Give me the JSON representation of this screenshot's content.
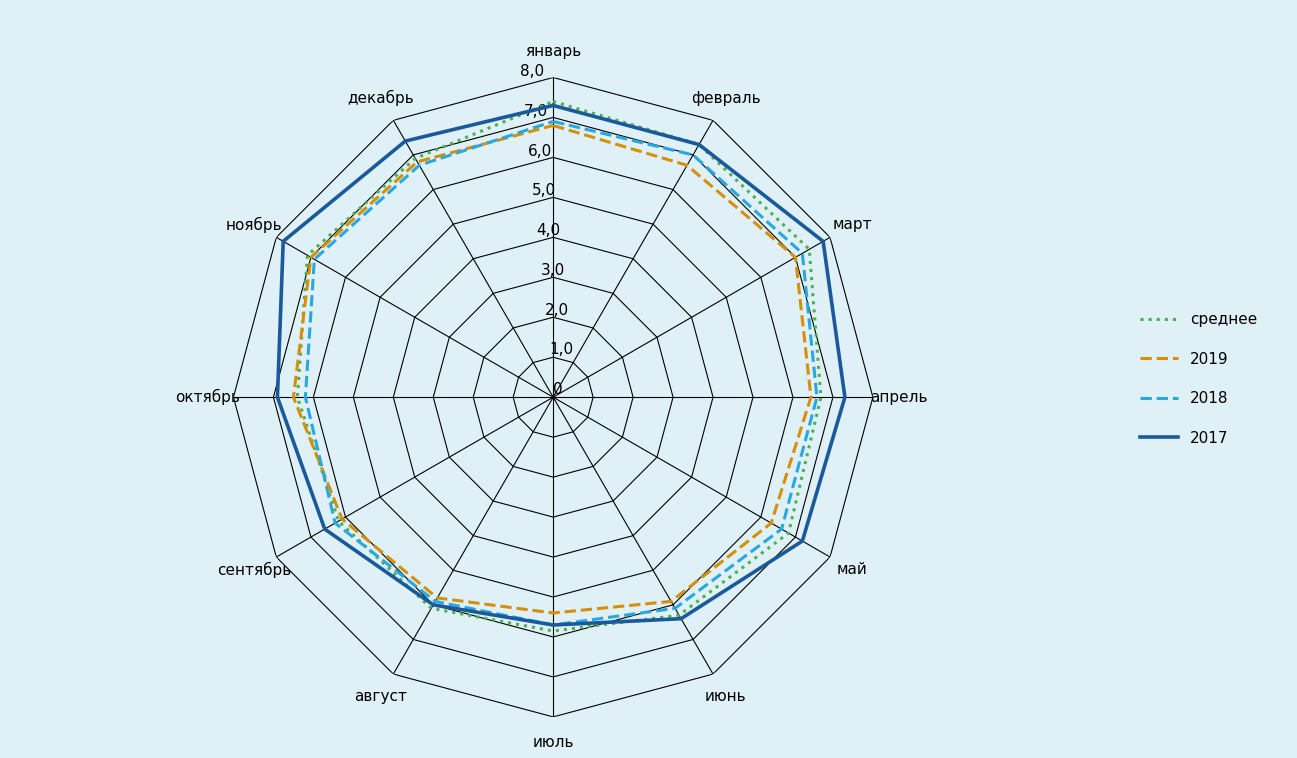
{
  "chart_data": {
    "type": "radar",
    "categories": [
      "январь",
      "февраль",
      "март",
      "апрель",
      "май",
      "июнь",
      "июль",
      "август",
      "сентябрь",
      "октябрь",
      "ноябрь",
      "декабрь"
    ],
    "series": [
      {
        "name": "среднее",
        "color": "#4caf50",
        "line_style": "dotted",
        "values": [
          7.4,
          7.3,
          7.4,
          6.7,
          6.8,
          6.3,
          5.85,
          6.1,
          6.2,
          6.4,
          7.1,
          6.9
        ]
      },
      {
        "name": "2019",
        "color": "#d4900a",
        "line_style": "dashed",
        "values": [
          6.8,
          6.7,
          7.0,
          6.45,
          6.3,
          5.9,
          5.4,
          5.8,
          6.1,
          6.5,
          7.0,
          6.8
        ]
      },
      {
        "name": "2018",
        "color": "#29a8e0",
        "line_style": "dashed",
        "values": [
          6.9,
          7.0,
          7.2,
          6.6,
          6.6,
          6.1,
          5.7,
          5.9,
          6.3,
          6.2,
          6.9,
          6.7
        ]
      },
      {
        "name": "2017",
        "color": "#1a5a9a",
        "line_style": "solid",
        "values": [
          7.3,
          7.3,
          7.8,
          7.3,
          7.2,
          6.4,
          5.7,
          6.0,
          6.6,
          6.9,
          7.8,
          7.4
        ]
      }
    ],
    "ylim": [
      0,
      8
    ],
    "yticks": [
      0,
      {
        "value": 1,
        "label": "1,0"
      },
      {
        "value": 2,
        "label": "2,0"
      },
      {
        "value": 3,
        "label": "3,0"
      },
      {
        "value": 4,
        "label": "4,0"
      },
      {
        "value": 5,
        "label": "5,0"
      },
      {
        "value": 6,
        "label": "6,0"
      },
      {
        "value": 7,
        "label": "7,0"
      },
      {
        "value": 8,
        "label": "8,0"
      }
    ],
    "grid": true,
    "legend": "right"
  }
}
